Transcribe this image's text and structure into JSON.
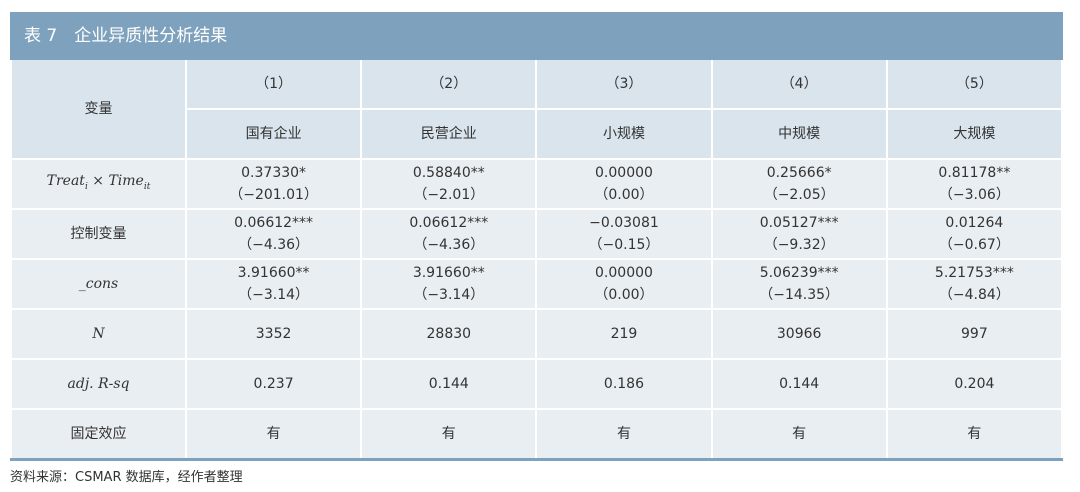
{
  "header": {
    "title": "表 7　企业异质性分析结果"
  },
  "table": {
    "variable_header": "变量",
    "column_numbers": [
      "（1）",
      "（2）",
      "（3）",
      "（4）",
      "（5）"
    ],
    "column_names": [
      "国有企业",
      "民营企业",
      "小规模",
      "中规模",
      "大规模"
    ],
    "rows": [
      {
        "label": [
          {
            "text": "Treat"
          },
          {
            "sub": "i"
          },
          {
            "text": " × Time"
          },
          {
            "sub": "it"
          }
        ],
        "cells": [
          {
            "coef": "0.37330*",
            "t": "（−201.01）"
          },
          {
            "coef": "0.58840**",
            "t": "（−2.01）"
          },
          {
            "coef": "0.00000",
            "t": "（0.00）"
          },
          {
            "coef": "0.25666*",
            "t": "（−2.05）"
          },
          {
            "coef": "0.81178**",
            "t": "（−3.06）"
          }
        ]
      },
      {
        "label": "控制变量",
        "cells": [
          {
            "coef": "0.06612***",
            "t": "（−4.36）"
          },
          {
            "coef": "0.06612***",
            "t": "（−4.36）"
          },
          {
            "coef": "−0.03081",
            "t": "（−0.15）"
          },
          {
            "coef": "0.05127***",
            "t": "（−9.32）"
          },
          {
            "coef": "0.01264",
            "t": "（−0.67）"
          }
        ]
      },
      {
        "label": "_cons",
        "cells": [
          {
            "coef": "3.91660**",
            "t": "（−3.14）"
          },
          {
            "coef": "3.91660**",
            "t": "（−3.14）"
          },
          {
            "coef": "0.00000",
            "t": "（0.00）"
          },
          {
            "coef": "5.06239***",
            "t": "（−14.35）"
          },
          {
            "coef": "5.21753***",
            "t": "（−4.84）"
          }
        ]
      },
      {
        "label": "N",
        "cells": [
          "3352",
          "28830",
          "219",
          "30966",
          "997"
        ]
      },
      {
        "label": "adj. R-sq",
        "cells": [
          "0.237",
          "0.144",
          "0.186",
          "0.144",
          "0.204"
        ]
      },
      {
        "label": "固定效应",
        "cells": [
          "有",
          "有",
          "有",
          "有",
          "有"
        ]
      }
    ]
  },
  "footnote": "资料来源：CSMAR 数据库，经作者整理"
}
